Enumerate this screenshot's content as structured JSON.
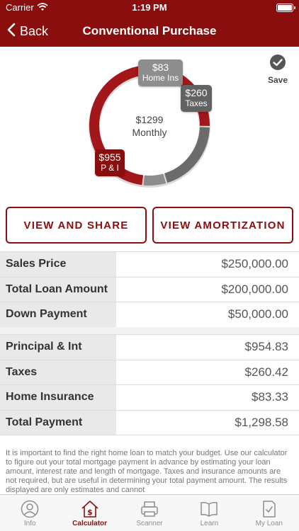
{
  "status": {
    "carrier": "Carrier",
    "time": "1:19 PM"
  },
  "nav": {
    "back_label": "Back",
    "title": "Conventional Purchase"
  },
  "chart": {
    "save_label": "Save",
    "center_amount": "$1299",
    "center_label": "Monthly",
    "tags": {
      "home_ins": {
        "amount": "$83",
        "label": "Home Ins"
      },
      "taxes": {
        "amount": "$260",
        "label": "Taxes"
      },
      "pi": {
        "amount": "$955",
        "label": "P & I"
      }
    }
  },
  "chart_data": {
    "type": "pie",
    "categories": [
      "P & I",
      "Taxes",
      "Home Ins"
    ],
    "values": [
      955,
      260,
      83
    ],
    "colors": [
      "#a3161a",
      "#6b6b6b",
      "#8d8d8d"
    ]
  },
  "buttons": {
    "share": "VIEW AND SHARE",
    "amortization": "VIEW AMORTIZATION"
  },
  "loan_rows": [
    {
      "label": "Sales Price",
      "value": "$250,000.00"
    },
    {
      "label": "Total Loan Amount",
      "value": "$200,000.00"
    },
    {
      "label": "Down Payment",
      "value": "$50,000.00"
    }
  ],
  "payment_rows": [
    {
      "label": "Principal & Int",
      "value": "$954.83"
    },
    {
      "label": "Taxes",
      "value": "$260.42"
    },
    {
      "label": "Home Insurance",
      "value": "$83.33"
    },
    {
      "label": "Total Payment",
      "value": "$1,298.58"
    }
  ],
  "disclaimer": "It is important to find the right home loan to match your budget. Use our calculator to figure out your total mortgage payment in advance by estimating your loan amount, interest rate and length of mortgage. Taxes and insurance amounts are not required, but are useful in determining your total payment amount.  The results displayed are only estimates and cannot",
  "tabs": [
    {
      "label": "Info",
      "icon": "person-circle-icon",
      "active": false
    },
    {
      "label": "Calculator",
      "icon": "house-dollar-icon",
      "active": true
    },
    {
      "label": "Scanner",
      "icon": "scanner-icon",
      "active": false
    },
    {
      "label": "Learn",
      "icon": "book-icon",
      "active": false
    },
    {
      "label": "My Loan",
      "icon": "document-check-icon",
      "active": false
    }
  ]
}
